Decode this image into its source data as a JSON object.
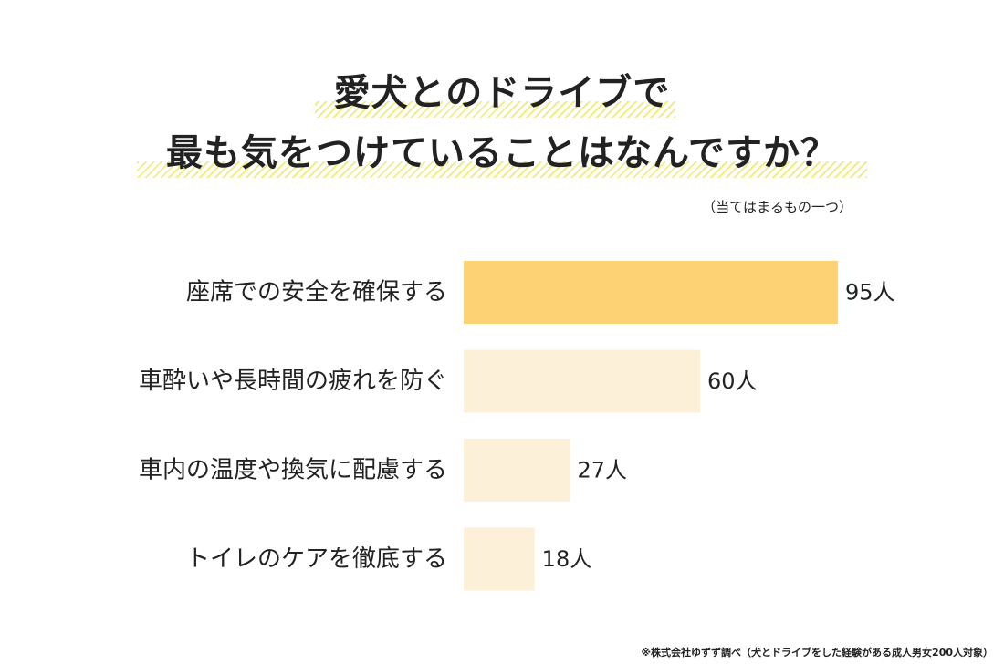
{
  "title": {
    "line1": "愛犬とのドライブで",
    "line2": "最も気をつけていることはなんですか？"
  },
  "subtitle": "（当てはまるもの一つ）",
  "footnote": "※株式会社ゆずず調べ（犬とドライブをした経験がある成人男女200人対象）",
  "colors": {
    "highlight_bar": "#fdd275",
    "other_bars": "#fdf0d8",
    "title_underline": "#f3ec8a",
    "text": "#222222"
  },
  "chart_data": {
    "type": "bar",
    "orientation": "horizontal",
    "categories": [
      "座席での安全を確保する",
      "車酔いや長時間の疲れを防ぐ",
      "車内の温度や換気に配慮する",
      "トイレのケアを徹底する"
    ],
    "values": [
      95,
      60,
      27,
      18
    ],
    "value_labels": [
      "95人",
      "60人",
      "27人",
      "18人"
    ],
    "unit": "人",
    "xlim": [
      0,
      95
    ],
    "grid": false,
    "legend": "none",
    "highlight_index": 0
  }
}
